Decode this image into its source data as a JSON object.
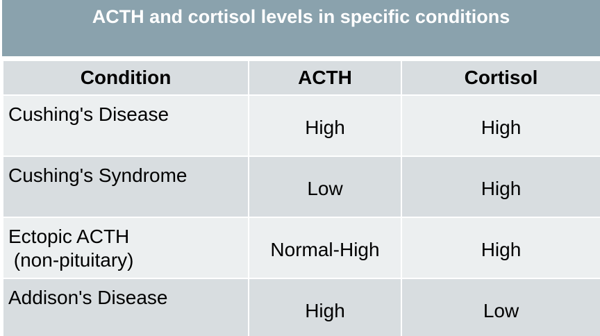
{
  "title": "ACTH and cortisol levels in specific conditions",
  "columns": [
    "Condition",
    "ACTH",
    "Cortisol"
  ],
  "rows": [
    {
      "condition": [
        "Cushing's Disease"
      ],
      "acth": "High",
      "cortisol": "High"
    },
    {
      "condition": [
        "Cushing's Syndrome"
      ],
      "acth": "Low",
      "cortisol": "High"
    },
    {
      "condition": [
        "Ectopic ACTH",
        " (non-pituitary)"
      ],
      "acth": "Normal-High",
      "cortisol": "High"
    },
    {
      "condition": [
        "Addison's Disease"
      ],
      "acth": "High",
      "cortisol": "Low"
    }
  ],
  "colors": {
    "title_bar": "#8aa2ad",
    "header_row": "#d8dde0",
    "row_light": "#eceff0",
    "row_dark": "#d8dde0"
  }
}
